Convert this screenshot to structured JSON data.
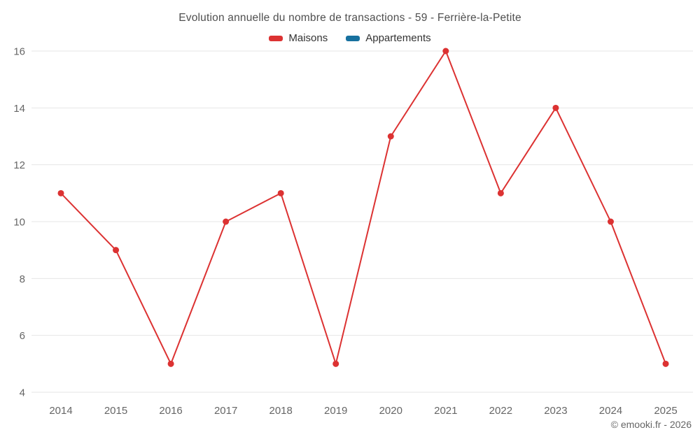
{
  "title": "Evolution annuelle du nombre de transactions - 59 - Ferrière-la-Petite",
  "attribution": "© emooki.fr - 2026",
  "chart_data": {
    "type": "line",
    "title": "Evolution annuelle du nombre de transactions - 59 - Ferrière-la-Petite",
    "x": [
      "2014",
      "2015",
      "2016",
      "2017",
      "2018",
      "2019",
      "2020",
      "2021",
      "2022",
      "2023",
      "2024",
      "2025"
    ],
    "series": [
      {
        "name": "Maisons",
        "color": "#dc3232",
        "values": [
          11,
          9,
          5,
          10,
          11,
          5,
          13,
          16,
          11,
          14,
          10,
          5
        ]
      },
      {
        "name": "Appartements",
        "color": "#17719f",
        "values": []
      }
    ],
    "ylim": [
      4,
      16
    ],
    "yticks": [
      4,
      6,
      8,
      10,
      12,
      14,
      16
    ],
    "xlabel": "",
    "ylabel": "",
    "grid": "horizontal-only",
    "legend_position": "top",
    "marker": "circle",
    "attribution": "© emooki.fr - 2026"
  }
}
